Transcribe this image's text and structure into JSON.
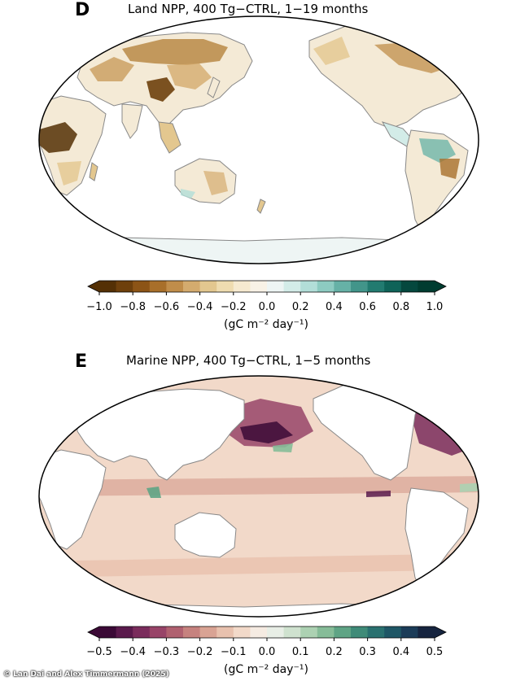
{
  "panels": [
    {
      "letter": "D",
      "title": "Land NPP, 400 Tg−CTRL, 1−19 months",
      "colorbar": {
        "ticks": [
          "−1.0",
          "−0.8",
          "−0.6",
          "−0.4",
          "−0.2",
          "0.0",
          "0.2",
          "0.4",
          "0.6",
          "0.8",
          "1.0"
        ],
        "unit": "(gC m⁻² day⁻¹)",
        "colors": [
          "#543005",
          "#6e400c",
          "#8c5416",
          "#a86f2a",
          "#c08d4a",
          "#d4ab6e",
          "#e3c78f",
          "#efdcb0",
          "#f6ead0",
          "#f8f2e6",
          "#eef5f4",
          "#d3ece8",
          "#b2ded8",
          "#8dcbc1",
          "#66b1a6",
          "#42958a",
          "#227b70",
          "#0f6358",
          "#05483e",
          "#003c30"
        ]
      }
    },
    {
      "letter": "E",
      "title": "Marine NPP, 400 Tg−CTRL, 1−5 months",
      "colorbar": {
        "ticks": [
          "−0.5",
          "−0.4",
          "−0.3",
          "−0.2",
          "−0.1",
          "0.0",
          "0.1",
          "0.2",
          "0.3",
          "0.4",
          "0.5"
        ],
        "unit": "(gC m⁻² day⁻¹)",
        "colors": [
          "#3b0a36",
          "#5a1a4c",
          "#7a2c5c",
          "#984468",
          "#b06170",
          "#c6827f",
          "#d9a394",
          "#e8c1ae",
          "#f2d9c9",
          "#f5ebe2",
          "#e8eee6",
          "#cfe2cf",
          "#acd1b2",
          "#86bc98",
          "#5fa485",
          "#3f8b78",
          "#2a7170",
          "#1f5766",
          "#1b3c58",
          "#16243f"
        ]
      }
    }
  ],
  "credit": "© Lan Dai and Alex Timmermann (2025)"
}
